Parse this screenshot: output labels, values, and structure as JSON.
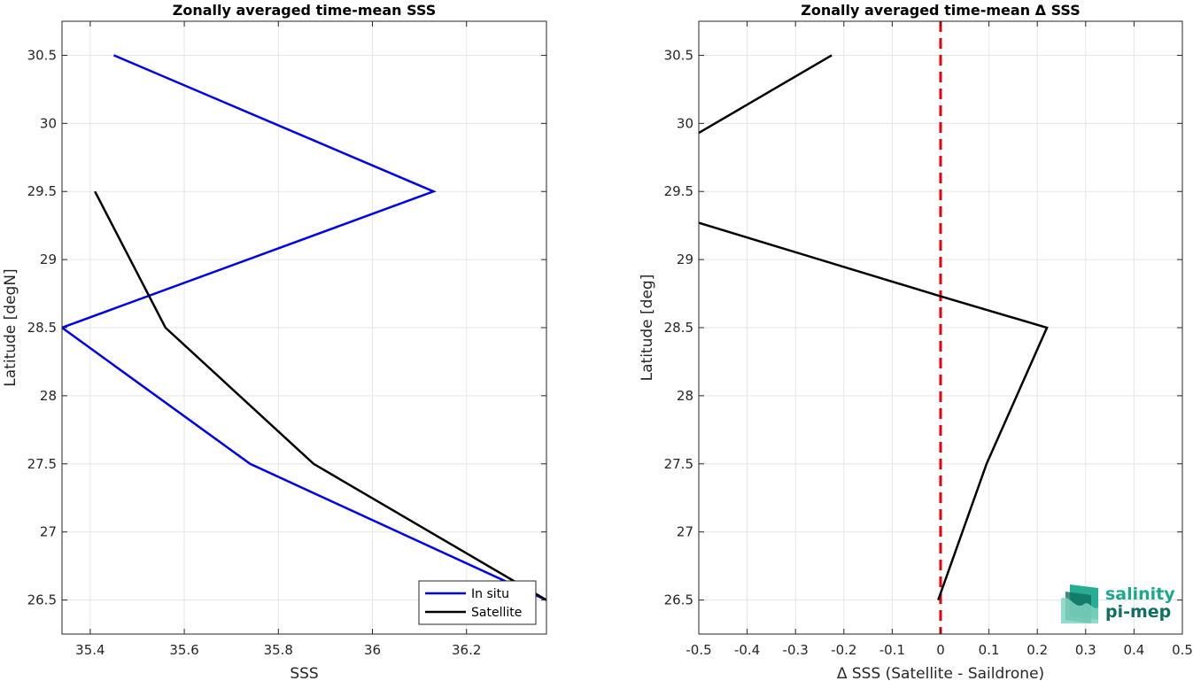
{
  "chart_data": [
    {
      "type": "line",
      "title": "Zonally averaged time-mean SSS",
      "xlabel": "SSS",
      "ylabel": "Latitude [degN]",
      "xlim": [
        35.34,
        36.37
      ],
      "ylim": [
        26.25,
        30.75
      ],
      "xticks": [
        35.4,
        35.6,
        35.8,
        36,
        36.2
      ],
      "xtick_labels": [
        "35.4",
        "35.6",
        "35.8",
        "36",
        "36.2"
      ],
      "yticks": [
        26.5,
        27,
        27.5,
        28,
        28.5,
        29,
        29.5,
        30,
        30.5
      ],
      "ytick_labels": [
        "26.5",
        "27",
        "27.5",
        "28",
        "28.5",
        "29",
        "29.5",
        "30",
        "30.5"
      ],
      "grid": true,
      "legend_position": "bottom-right",
      "series": [
        {
          "name": "In situ",
          "color": "#0000ee",
          "points": [
            [
              35.45,
              30.5
            ],
            [
              36.13,
              29.5
            ],
            [
              35.34,
              28.5
            ],
            [
              35.74,
              27.5
            ],
            [
              36.37,
              26.5
            ]
          ]
        },
        {
          "name": "Satellite",
          "color": "#000000",
          "points": [
            [
              35.41,
              29.5
            ],
            [
              35.56,
              28.5
            ],
            [
              35.875,
              27.5
            ],
            [
              36.37,
              26.5
            ]
          ]
        }
      ]
    },
    {
      "type": "line",
      "title": "Zonally averaged time-mean Δ SSS",
      "xlabel": "Δ SSS (Satellite - Saildrone)",
      "ylabel": "Latitude [deg]",
      "xlim": [
        -0.5,
        0.5
      ],
      "ylim": [
        26.25,
        30.75
      ],
      "xticks": [
        -0.5,
        -0.4,
        -0.3,
        -0.2,
        -0.1,
        0,
        0.1,
        0.2,
        0.3,
        0.4,
        0.5
      ],
      "xtick_labels": [
        "-0.5",
        "-0.4",
        "-0.3",
        "-0.2",
        "-0.1",
        "0",
        "0.1",
        "0.2",
        "0.3",
        "0.4",
        "0.5"
      ],
      "yticks": [
        26.5,
        27,
        27.5,
        28,
        28.5,
        29,
        29.5,
        30,
        30.5
      ],
      "ytick_labels": [
        "26.5",
        "27",
        "27.5",
        "28",
        "28.5",
        "29",
        "29.5",
        "30",
        "30.5"
      ],
      "grid": true,
      "reference_line": {
        "x": 0,
        "color": "#e8000b",
        "style": "dashed"
      },
      "series": [
        {
          "color": "#000000",
          "segments": [
            [
              [
                -0.225,
                30.5
              ],
              [
                -0.5,
                29.93
              ]
            ],
            [
              [
                -0.5,
                29.27
              ],
              [
                0.0,
                28.73
              ],
              [
                0.22,
                28.5
              ],
              [
                0.095,
                27.5
              ],
              [
                -0.005,
                26.5
              ]
            ]
          ]
        }
      ]
    }
  ],
  "logo": {
    "line1": "salinity",
    "line2": "pi-mep",
    "colors": [
      "#1aa98c",
      "#0f6f62",
      "#7fd3c0"
    ]
  }
}
